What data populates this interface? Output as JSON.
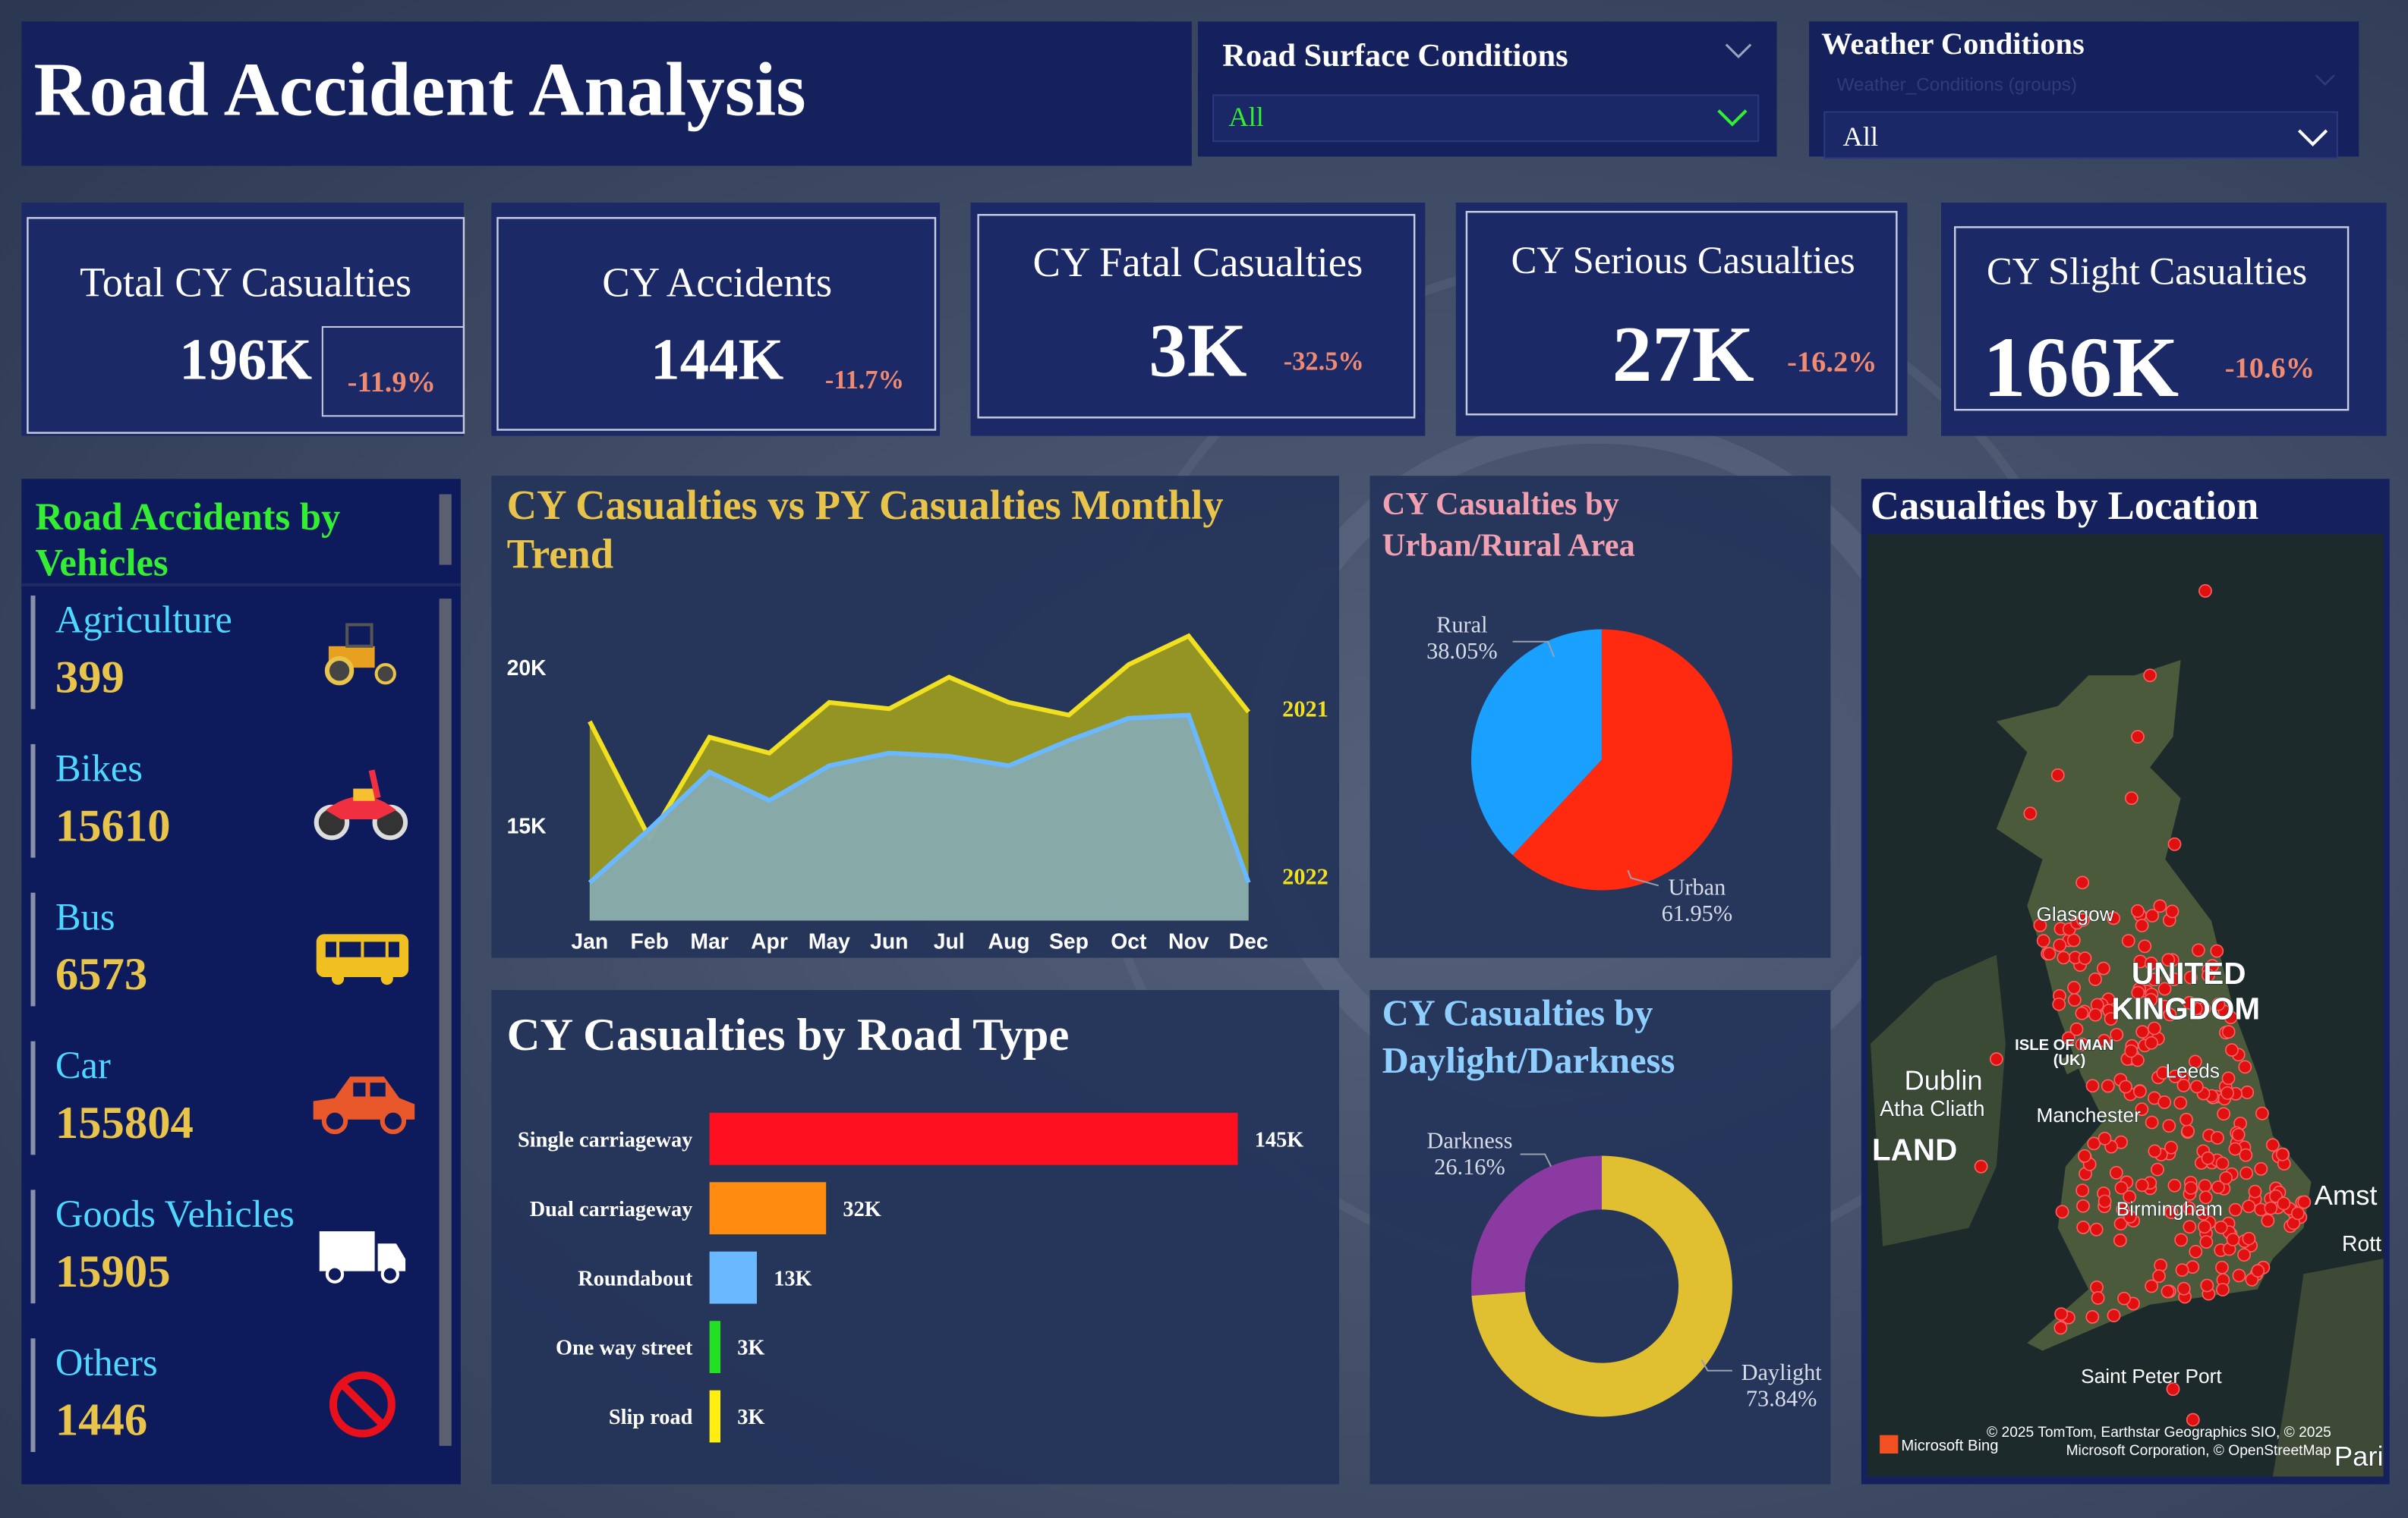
{
  "header": {
    "title": "Road Accident Analysis"
  },
  "filters": [
    {
      "label": "Road Surface Conditions",
      "value": "All"
    },
    {
      "label": "Weather Conditions",
      "placeholder": "Weather_Conditions (groups)",
      "value": "All"
    }
  ],
  "kpis": [
    {
      "label": "Total CY Casualties",
      "value": "196K",
      "change": "-11.9%"
    },
    {
      "label": "CY Accidents",
      "value": "144K",
      "change": "-11.7%"
    },
    {
      "label": "CY Fatal Casualties",
      "value": "3K",
      "change": "-32.5%"
    },
    {
      "label": "CY Serious Casualties",
      "value": "27K",
      "change": "-16.2%"
    },
    {
      "label": "CY Slight Casualties",
      "value": "166K",
      "change": "-10.6%"
    }
  ],
  "vehicles": {
    "title": "Road Accidents by Vehicles",
    "items": [
      {
        "name": "Agriculture",
        "value": 399
      },
      {
        "name": "Bikes",
        "value": 15610
      },
      {
        "name": "Bus",
        "value": 6573
      },
      {
        "name": "Car",
        "value": 155804
      },
      {
        "name": "Goods Vehicles",
        "value": 15905
      },
      {
        "name": "Others",
        "value": 1446
      }
    ]
  },
  "chart_data": [
    {
      "type": "area",
      "title": "CY Casualties vs PY Casualties Monthly Trend",
      "categories": [
        "Jan",
        "Feb",
        "Mar",
        "Apr",
        "May",
        "Jun",
        "Jul",
        "Aug",
        "Sep",
        "Oct",
        "Nov",
        "Dec"
      ],
      "series": [
        {
          "name": "2021",
          "color": "#f0e020",
          "values": [
            18300,
            14600,
            17800,
            17300,
            18900,
            18700,
            19700,
            18900,
            18500,
            20100,
            21000,
            18600
          ]
        },
        {
          "name": "2022",
          "color": "#6ab8ff",
          "values": [
            13200,
            14900,
            16700,
            15800,
            16900,
            17300,
            17200,
            16900,
            17700,
            18400,
            18500,
            13200
          ]
        }
      ],
      "ylim": [
        12000,
        22000
      ],
      "yticks": [
        {
          "value": 15000,
          "label": "15K"
        },
        {
          "value": 20000,
          "label": "20K"
        }
      ],
      "grid": false
    },
    {
      "type": "pie",
      "title": "CY Casualties by Urban/Rural Area",
      "categories": [
        "Rural",
        "Urban"
      ],
      "values": [
        38.05,
        61.95
      ],
      "value_labels": [
        "38.05%",
        "61.95%"
      ],
      "colors": [
        "#1aa0ff",
        "#ff2a10"
      ]
    },
    {
      "type": "hbar",
      "title": "CY Casualties by Road Type",
      "categories": [
        "Single carriageway",
        "Dual carriageway",
        "Roundabout",
        "One way street",
        "Slip road"
      ],
      "values": [
        145000,
        32000,
        13000,
        3000,
        3000
      ],
      "value_labels": [
        "145K",
        "32K",
        "13K",
        "3K",
        "3K"
      ],
      "colors": [
        "#ff1020",
        "#ff8c10",
        "#6ab8ff",
        "#22e022",
        "#ffee10"
      ]
    },
    {
      "type": "donut",
      "title": "CY Casualties by Daylight/Darkness",
      "categories": [
        "Darkness",
        "Daylight"
      ],
      "values": [
        26.16,
        73.84
      ],
      "value_labels": [
        "26.16%",
        "73.84%"
      ],
      "colors": [
        "#8a3aa0",
        "#e0c030"
      ]
    }
  ],
  "map": {
    "title": "Casualties by Location",
    "labels": [
      "Glasgow",
      "UNITED",
      "KINGDOM",
      "ISLE OF MAN",
      "(UK)",
      "Dublin",
      "Atha Cliath",
      "LAND",
      "Manchester",
      "Leeds",
      "Birmingham",
      "Amst",
      "Rott",
      "Saint Peter Port",
      "Pari"
    ],
    "attribution": [
      "© 2025 TomTom, Earthstar Geographics SIO, © 2025",
      "Microsoft Corporation, © OpenStreetMap"
    ],
    "logo": "Microsoft Bing"
  }
}
